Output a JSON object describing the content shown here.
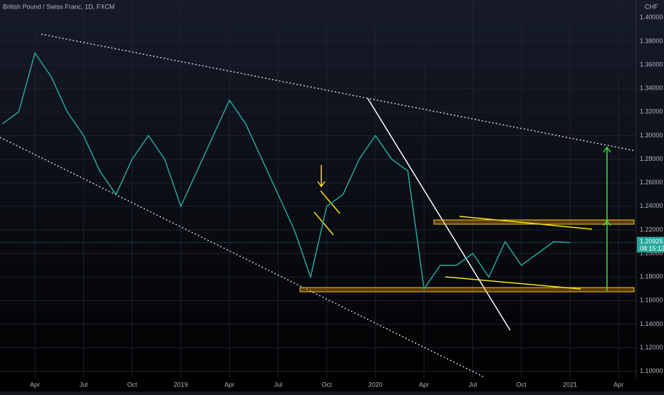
{
  "chart_data": {
    "type": "line",
    "title": "British Pound / Swiss Franc, 1D, FXCM",
    "currency": "CHF",
    "categories": [
      null,
      null,
      "Apr",
      null,
      null,
      "Jul",
      null,
      null,
      "Oct",
      null,
      null,
      "2019",
      null,
      null,
      "Apr",
      null,
      null,
      "Jul",
      null,
      null,
      "Oct",
      null,
      null,
      "2020",
      null,
      null,
      "Apr",
      null,
      null,
      "Jul",
      null,
      null,
      "Oct",
      null,
      null,
      "2021",
      null,
      null,
      "Apr"
    ],
    "series": [
      {
        "name": "GBPCHF",
        "color": "#26a69a",
        "values": [
          1.31,
          1.32,
          1.37,
          1.35,
          1.32,
          1.3,
          1.27,
          1.25,
          1.28,
          1.3,
          1.28,
          1.24,
          1.27,
          1.3,
          1.33,
          1.31,
          1.28,
          1.25,
          1.22,
          1.18,
          1.24,
          1.25,
          1.28,
          1.3,
          1.28,
          1.27,
          1.17,
          1.19,
          1.19,
          1.2,
          1.18,
          1.21,
          1.19,
          1.2,
          1.21,
          1.20925,
          null,
          null,
          null
        ]
      }
    ],
    "ylim": [
      1.095,
      1.415
    ],
    "yticks": [
      {
        "value": 1.1,
        "label": "1.10000"
      },
      {
        "value": 1.12,
        "label": "1.12000"
      },
      {
        "value": 1.14,
        "label": "1.14000"
      },
      {
        "value": 1.16,
        "label": "1.16000"
      },
      {
        "value": 1.18,
        "label": "1.18000"
      },
      {
        "value": 1.2,
        "label": "1.20000"
      },
      {
        "value": 1.22,
        "label": "1.22000"
      },
      {
        "value": 1.24,
        "label": "1.24000"
      },
      {
        "value": 1.26,
        "label": "1.26000"
      },
      {
        "value": 1.28,
        "label": "1.28000"
      },
      {
        "value": 1.3,
        "label": "1.30000"
      },
      {
        "value": 1.32,
        "label": "1.32000"
      },
      {
        "value": 1.34,
        "label": "1.34000"
      },
      {
        "value": 1.36,
        "label": "1.36000"
      },
      {
        "value": 1.38,
        "label": "1.38000"
      },
      {
        "value": 1.4,
        "label": "1.40000"
      }
    ],
    "current_price": {
      "value": 1.20925,
      "label": "1.20925"
    },
    "countdown": "08:15:12",
    "grid": true
  }
}
